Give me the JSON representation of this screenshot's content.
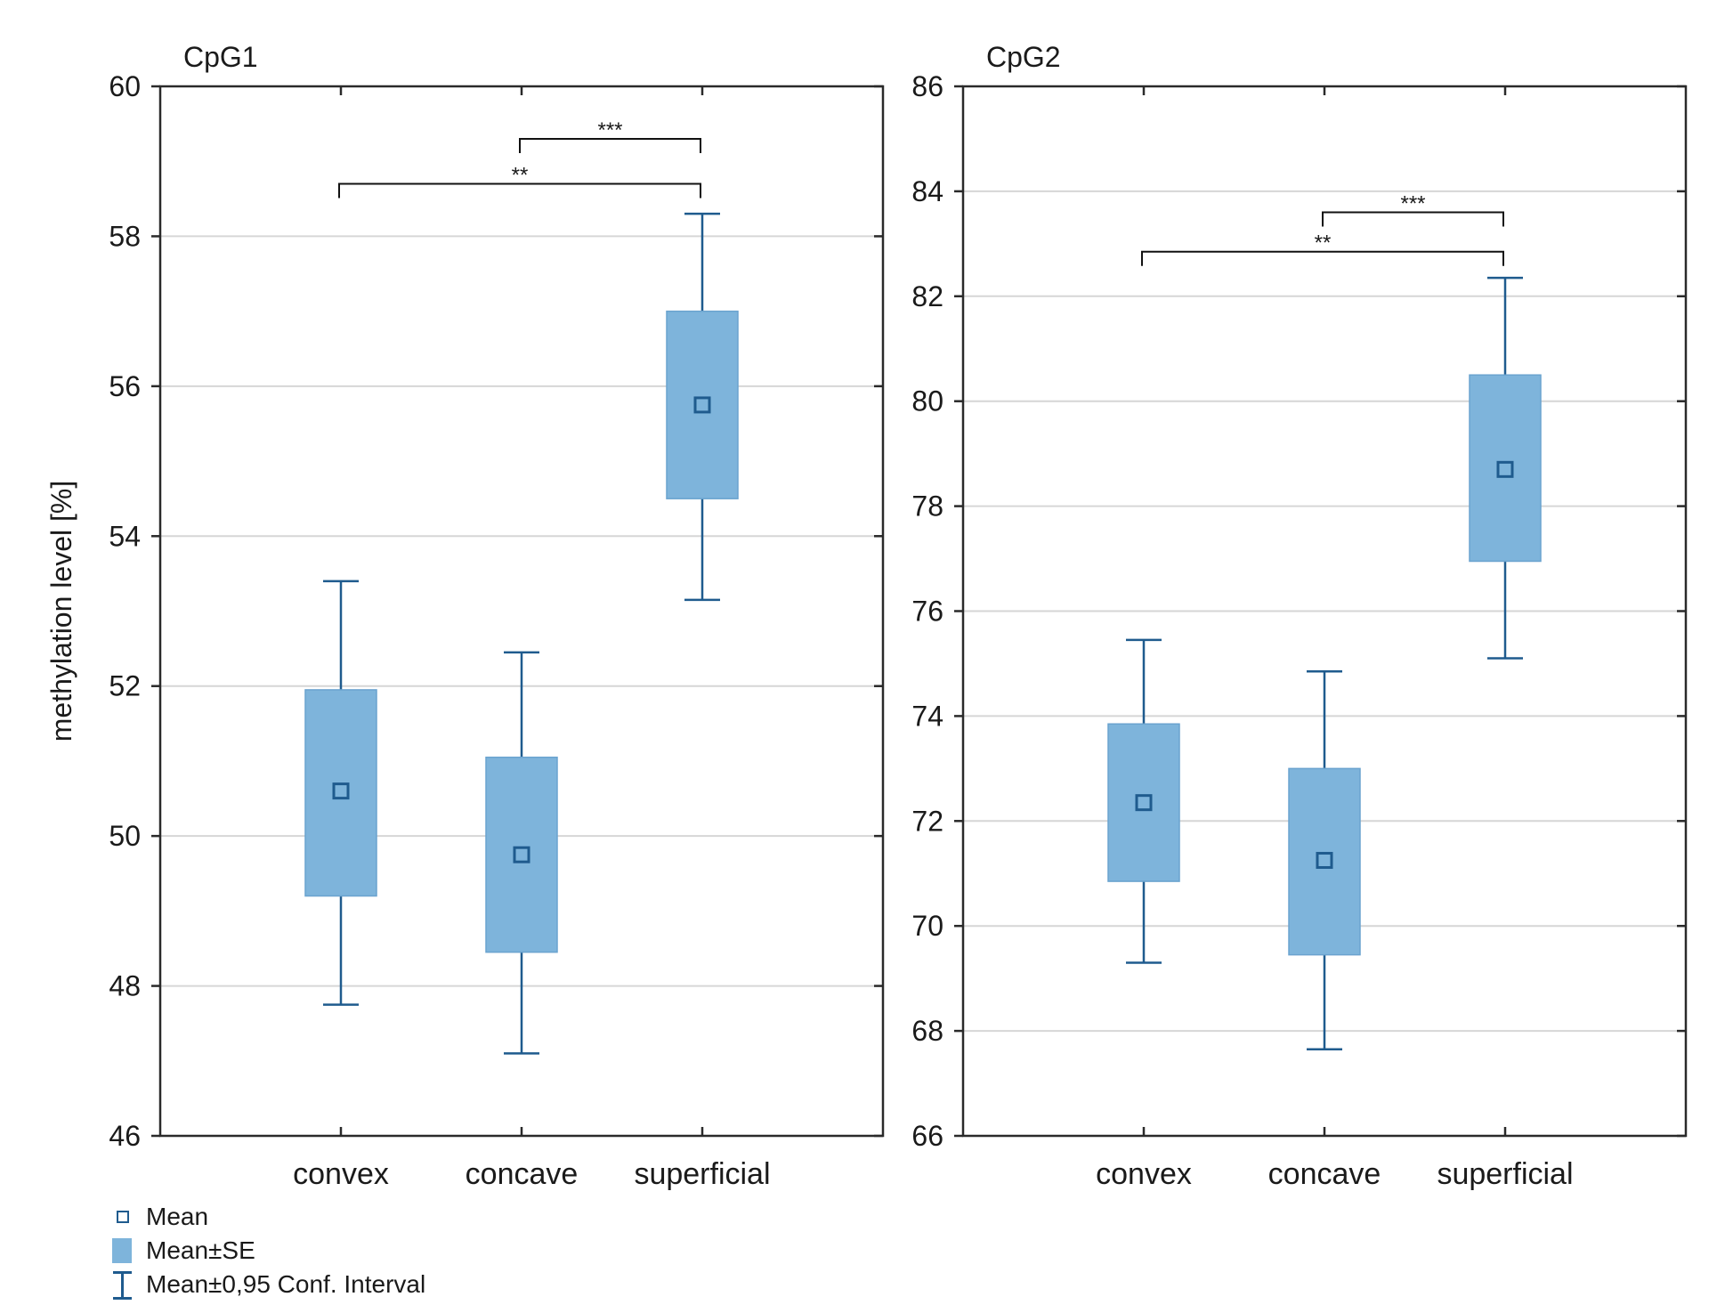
{
  "chart_data": [
    {
      "type": "box",
      "title": "CpG1",
      "ylabel": "methylation level [%]",
      "xlabel": "",
      "ylim": [
        46,
        60
      ],
      "yticks": [
        46,
        48,
        50,
        52,
        54,
        56,
        58,
        60
      ],
      "grid": true,
      "categories": [
        "convex",
        "concave",
        "superficial"
      ],
      "mean": [
        50.6,
        49.75,
        55.75
      ],
      "se_low": [
        49.2,
        48.45,
        54.5
      ],
      "se_high": [
        51.95,
        51.05,
        57.0
      ],
      "ci_low": [
        47.75,
        47.1,
        53.15
      ],
      "ci_high": [
        53.4,
        52.45,
        58.3
      ],
      "significance": [
        {
          "from": "concave",
          "to": "superficial",
          "label": "***",
          "y": 59.3
        },
        {
          "from": "convex",
          "to": "superficial",
          "label": "**",
          "y": 58.7
        }
      ]
    },
    {
      "type": "box",
      "title": "CpG2",
      "ylabel": "",
      "xlabel": "",
      "ylim": [
        66,
        86
      ],
      "yticks": [
        66,
        68,
        70,
        72,
        74,
        76,
        78,
        80,
        82,
        84,
        86
      ],
      "grid": true,
      "categories": [
        "convex",
        "concave",
        "superficial"
      ],
      "mean": [
        72.35,
        71.25,
        78.7
      ],
      "se_low": [
        70.85,
        69.45,
        76.95
      ],
      "se_high": [
        73.85,
        73.0,
        80.5
      ],
      "ci_low": [
        69.3,
        67.65,
        75.1
      ],
      "ci_high": [
        75.45,
        74.85,
        82.35
      ],
      "significance": [
        {
          "from": "concave",
          "to": "superficial",
          "label": "***",
          "y": 83.6
        },
        {
          "from": "convex",
          "to": "superficial",
          "label": "**",
          "y": 82.85
        }
      ]
    }
  ],
  "legend": {
    "mean_label": "Mean",
    "se_label": "Mean±SE",
    "ci_label": "Mean±0,95 Conf. Interval"
  },
  "colors": {
    "box_fill": "#7eb4db",
    "line": "#1f5b8e",
    "grid": "#d6d6d6",
    "axis": "#2a2a2a"
  }
}
